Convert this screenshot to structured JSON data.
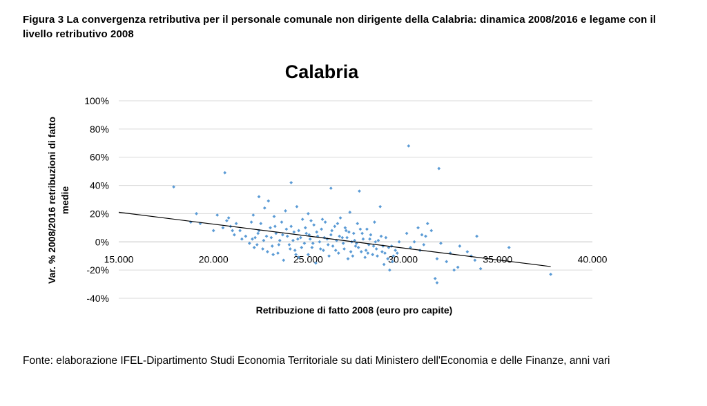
{
  "figure": {
    "caption": "Figura 3 La convergenza retributiva per il personale comunale non dirigente della Calabria: dinamica 2008/2016 e legame con il livello retributivo 2008",
    "source": "Fonte: elaborazione IFEL-Dipartimento Studi Economia Territoriale su dati Ministero dell'Economia e delle Finanze, anni vari"
  },
  "chart_data": {
    "type": "scatter",
    "title": "Calabria",
    "xlabel": "Retribuzione di fatto 2008 (euro pro capite)",
    "ylabel_lines": [
      "Var. % 2008/2016 retribuzioni di fatto",
      "medie"
    ],
    "xlim": [
      15000,
      40000
    ],
    "ylim": [
      -0.4,
      1.0
    ],
    "x_ticks": [
      15000,
      20000,
      25000,
      30000,
      35000,
      40000
    ],
    "x_tick_labels": [
      "15.000",
      "20.000",
      "25.000",
      "30.000",
      "35.000",
      "40.000"
    ],
    "y_ticks": [
      -0.4,
      -0.2,
      0,
      0.2,
      0.4,
      0.6,
      0.8,
      1.0
    ],
    "y_tick_labels": [
      "-40%",
      "-20%",
      "0%",
      "20%",
      "40%",
      "60%",
      "80%",
      "100%"
    ],
    "grid": "horizontal",
    "legend": "none",
    "marker_color": "#5B9BD5",
    "trendline": {
      "type": "linear",
      "x": [
        15000,
        37800
      ],
      "y": [
        0.21,
        -0.175
      ],
      "color": "#000000"
    },
    "series": [
      {
        "values": [
          [
            17900,
            0.39
          ],
          [
            18800,
            0.14
          ],
          [
            19100,
            0.2
          ],
          [
            19300,
            0.13
          ],
          [
            20000,
            0.08
          ],
          [
            20200,
            0.19
          ],
          [
            20500,
            0.1
          ],
          [
            20600,
            0.49
          ],
          [
            20700,
            0.15
          ],
          [
            20800,
            0.17
          ],
          [
            20900,
            0.11
          ],
          [
            21000,
            0.08
          ],
          [
            21100,
            0.05
          ],
          [
            21200,
            0.13
          ],
          [
            21400,
            0.08
          ],
          [
            21500,
            0.02
          ],
          [
            21700,
            0.04
          ],
          [
            21900,
            -0.01
          ],
          [
            22000,
            0.14
          ],
          [
            22100,
            0.19
          ],
          [
            22200,
            0.03
          ],
          [
            22300,
            -0.02
          ],
          [
            22400,
            0.32
          ],
          [
            22400,
            0.08
          ],
          [
            22500,
            0.13
          ],
          [
            22600,
            -0.05
          ],
          [
            22700,
            0.24
          ],
          [
            22800,
            0.04
          ],
          [
            22900,
            0.29
          ],
          [
            23000,
            0.1
          ],
          [
            23100,
            -0.03
          ],
          [
            23200,
            0.18
          ],
          [
            23300,
            0.06
          ],
          [
            23400,
            -0.08
          ],
          [
            23500,
            0.01
          ],
          [
            23600,
            0.14
          ],
          [
            23700,
            -0.13
          ],
          [
            23800,
            0.22
          ],
          [
            23900,
            0.04
          ],
          [
            24000,
            -0.02
          ],
          [
            24100,
            0.42
          ],
          [
            24100,
            0.11
          ],
          [
            24200,
            0.01
          ],
          [
            24300,
            -0.06
          ],
          [
            24400,
            0.25
          ],
          [
            24500,
            0.08
          ],
          [
            24500,
            -0.11
          ],
          [
            24600,
            0.03
          ],
          [
            24700,
            0.16
          ],
          [
            24800,
            -0.01
          ],
          [
            24900,
            0.06
          ],
          [
            25000,
            -0.09
          ],
          [
            25000,
            0.2
          ],
          [
            25100,
            0.02
          ],
          [
            25200,
            -0.04
          ],
          [
            25300,
            0.12
          ],
          [
            25400,
            -0.15
          ],
          [
            25500,
            0.04
          ],
          [
            25600,
            0.0
          ],
          [
            25700,
            0.09
          ],
          [
            25800,
            -0.06
          ],
          [
            25900,
            0.14
          ],
          [
            26000,
            0.02
          ],
          [
            26100,
            -0.1
          ],
          [
            26200,
            0.38
          ],
          [
            26200,
            0.05
          ],
          [
            26300,
            -0.03
          ],
          [
            26400,
            0.11
          ],
          [
            26500,
            0.01
          ],
          [
            26600,
            -0.08
          ],
          [
            26700,
            0.17
          ],
          [
            26800,
            0.03
          ],
          [
            26900,
            -0.05
          ],
          [
            27000,
            0.08
          ],
          [
            27100,
            -0.12
          ],
          [
            27200,
            0.21
          ],
          [
            27300,
            0.0
          ],
          [
            27400,
            0.06
          ],
          [
            27500,
            -0.03
          ],
          [
            27600,
            0.13
          ],
          [
            27700,
            0.36
          ],
          [
            27800,
            -0.07
          ],
          [
            27900,
            0.02
          ],
          [
            28000,
            -0.11
          ],
          [
            28100,
            0.09
          ],
          [
            28200,
            -0.02
          ],
          [
            28300,
            0.05
          ],
          [
            28400,
            -0.09
          ],
          [
            28500,
            0.14
          ],
          [
            28600,
            -0.05
          ],
          [
            28700,
            0.01
          ],
          [
            28800,
            0.25
          ],
          [
            28900,
            -0.07
          ],
          [
            29000,
            -0.16
          ],
          [
            29100,
            0.03
          ],
          [
            29200,
            -0.12
          ],
          [
            29300,
            -0.2
          ],
          [
            29400,
            -0.03
          ],
          [
            29500,
            -0.1
          ],
          [
            29600,
            -0.06
          ],
          [
            29800,
            0.0
          ],
          [
            30200,
            0.06
          ],
          [
            30300,
            0.68
          ],
          [
            30400,
            -0.04
          ],
          [
            30600,
            0.0
          ],
          [
            30800,
            0.1
          ],
          [
            31000,
            0.05
          ],
          [
            31100,
            -0.02
          ],
          [
            31300,
            0.13
          ],
          [
            31500,
            0.08
          ],
          [
            31700,
            -0.26
          ],
          [
            31800,
            -0.29
          ],
          [
            31800,
            -0.12
          ],
          [
            31900,
            0.52
          ],
          [
            32000,
            -0.01
          ],
          [
            32300,
            -0.14
          ],
          [
            32500,
            -0.08
          ],
          [
            32700,
            -0.2
          ],
          [
            32900,
            -0.18
          ],
          [
            33000,
            -0.03
          ],
          [
            33400,
            -0.07
          ],
          [
            33600,
            -0.1
          ],
          [
            33800,
            -0.13
          ],
          [
            33900,
            0.04
          ],
          [
            34100,
            -0.19
          ],
          [
            35600,
            -0.04
          ],
          [
            37800,
            -0.23
          ],
          [
            22050,
            0.02
          ],
          [
            22150,
            -0.04
          ],
          [
            22350,
            0.06
          ],
          [
            22650,
            0.01
          ],
          [
            22850,
            -0.07
          ],
          [
            23050,
            0.03
          ],
          [
            23250,
            0.11
          ],
          [
            23450,
            -0.02
          ],
          [
            23650,
            0.05
          ],
          [
            23850,
            0.09
          ],
          [
            24050,
            -0.05
          ],
          [
            24250,
            0.07
          ],
          [
            24450,
            0.02
          ],
          [
            24650,
            -0.04
          ],
          [
            24850,
            0.1
          ],
          [
            25050,
            0.05
          ],
          [
            25250,
            -0.01
          ],
          [
            25450,
            0.07
          ],
          [
            25650,
            -0.05
          ],
          [
            25850,
            0.03
          ],
          [
            26050,
            -0.02
          ],
          [
            26250,
            0.08
          ],
          [
            26450,
            -0.06
          ],
          [
            26650,
            0.04
          ],
          [
            26850,
            -0.01
          ],
          [
            27050,
            0.03
          ],
          [
            27250,
            -0.07
          ],
          [
            27450,
            0.01
          ],
          [
            27650,
            -0.04
          ],
          [
            27850,
            0.06
          ],
          [
            28050,
            -0.06
          ],
          [
            28250,
            0.02
          ],
          [
            28450,
            -0.03
          ],
          [
            28650,
            -0.1
          ],
          [
            28850,
            0.04
          ],
          [
            29050,
            -0.08
          ],
          [
            29250,
            -0.04
          ],
          [
            29450,
            -0.14
          ],
          [
            23150,
            -0.09
          ],
          [
            24350,
            -0.09
          ],
          [
            25150,
            0.15
          ],
          [
            25750,
            0.16
          ],
          [
            26550,
            0.13
          ],
          [
            26950,
            0.1
          ],
          [
            27150,
            0.07
          ],
          [
            27350,
            -0.1
          ],
          [
            27550,
            -0.01
          ],
          [
            27750,
            0.09
          ],
          [
            28150,
            -0.08
          ],
          [
            28550,
            0.0
          ],
          [
            28950,
            -0.03
          ],
          [
            29700,
            -0.08
          ],
          [
            30900,
            -0.06
          ],
          [
            31200,
            0.04
          ]
        ]
      }
    ]
  }
}
